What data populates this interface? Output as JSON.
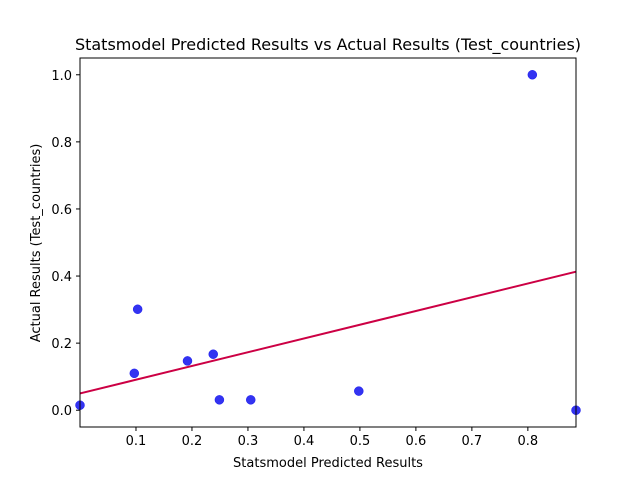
{
  "chart_data": {
    "type": "scatter",
    "title": "Statsmodel Predicted Results vs Actual Results (Test_countries)",
    "xlabel": "Statsmodel Predicted Results",
    "ylabel": "Actual Results (Test_countries)",
    "xlim": [
      0.0,
      0.886
    ],
    "ylim": [
      -0.05,
      1.05
    ],
    "x_ticks": [
      0.1,
      0.2,
      0.3,
      0.4,
      0.5,
      0.6,
      0.7,
      0.8
    ],
    "x_tick_labels": [
      "0.1",
      "0.2",
      "0.3",
      "0.4",
      "0.5",
      "0.6",
      "0.7",
      "0.8"
    ],
    "y_ticks": [
      0.0,
      0.2,
      0.4,
      0.6,
      0.8,
      1.0
    ],
    "y_tick_labels": [
      "0.0",
      "0.2",
      "0.4",
      "0.6",
      "0.8",
      "1.0"
    ],
    "grid": false,
    "series": [
      {
        "points": [
          {
            "x": 0.0,
            "y": 0.015
          },
          {
            "x": 0.097,
            "y": 0.11
          },
          {
            "x": 0.103,
            "y": 0.301
          },
          {
            "x": 0.192,
            "y": 0.147
          },
          {
            "x": 0.238,
            "y": 0.167
          },
          {
            "x": 0.249,
            "y": 0.031
          },
          {
            "x": 0.305,
            "y": 0.031
          },
          {
            "x": 0.498,
            "y": 0.057
          },
          {
            "x": 0.808,
            "y": 1.0
          },
          {
            "x": 0.886,
            "y": 0.0
          }
        ],
        "color": "#0000ee",
        "marker": "circle"
      }
    ],
    "regression_line": {
      "x": [
        0.0,
        0.886
      ],
      "y": [
        0.05,
        0.413
      ],
      "color": "#cc0044"
    }
  }
}
